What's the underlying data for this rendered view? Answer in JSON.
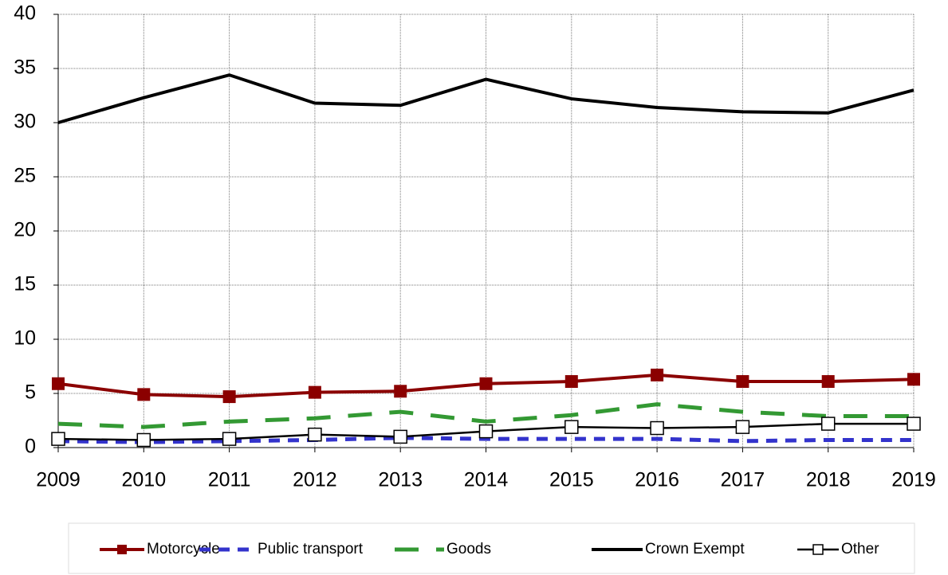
{
  "chart_data": {
    "type": "line",
    "x": [
      2009,
      2010,
      2011,
      2012,
      2013,
      2014,
      2015,
      2016,
      2017,
      2018,
      2019
    ],
    "xlim": [
      2009,
      2019
    ],
    "xticks": [
      2009,
      2010,
      2011,
      2012,
      2013,
      2014,
      2015,
      2016,
      2017,
      2018,
      2019
    ],
    "ylim": [
      0,
      40
    ],
    "yticks": [
      0,
      5,
      10,
      15,
      20,
      25,
      30,
      35,
      40
    ],
    "grid": true,
    "legend": "bottom",
    "series": [
      {
        "name": "Motorcycle",
        "color": "#8b0000",
        "line_style": "solid",
        "marker": "square",
        "values": [
          5.9,
          4.9,
          4.7,
          5.1,
          5.2,
          5.9,
          6.1,
          6.7,
          6.1,
          6.1,
          6.3
        ]
      },
      {
        "name": "Public transport",
        "color": "#3333cc",
        "line_style": "dashed",
        "marker": "none",
        "values": [
          0.6,
          0.5,
          0.6,
          0.7,
          0.9,
          0.8,
          0.8,
          0.8,
          0.6,
          0.7,
          0.7
        ]
      },
      {
        "name": "Goods",
        "color": "#339933",
        "line_style": "long-dashed",
        "marker": "none",
        "values": [
          2.2,
          1.9,
          2.4,
          2.7,
          3.3,
          2.4,
          3.0,
          4.0,
          3.3,
          2.9,
          2.9
        ]
      },
      {
        "name": "Crown Exempt",
        "color": "#000000",
        "line_style": "solid",
        "marker": "none",
        "values": [
          30.0,
          32.3,
          34.4,
          31.8,
          31.6,
          34.0,
          32.2,
          31.4,
          31.0,
          30.9,
          33.0
        ]
      },
      {
        "name": "Other",
        "color": "#000000",
        "line_style": "solid",
        "marker": "open-square",
        "values": [
          0.8,
          0.7,
          0.8,
          1.2,
          1.0,
          1.5,
          1.9,
          1.8,
          1.9,
          2.2,
          2.2
        ]
      }
    ]
  }
}
